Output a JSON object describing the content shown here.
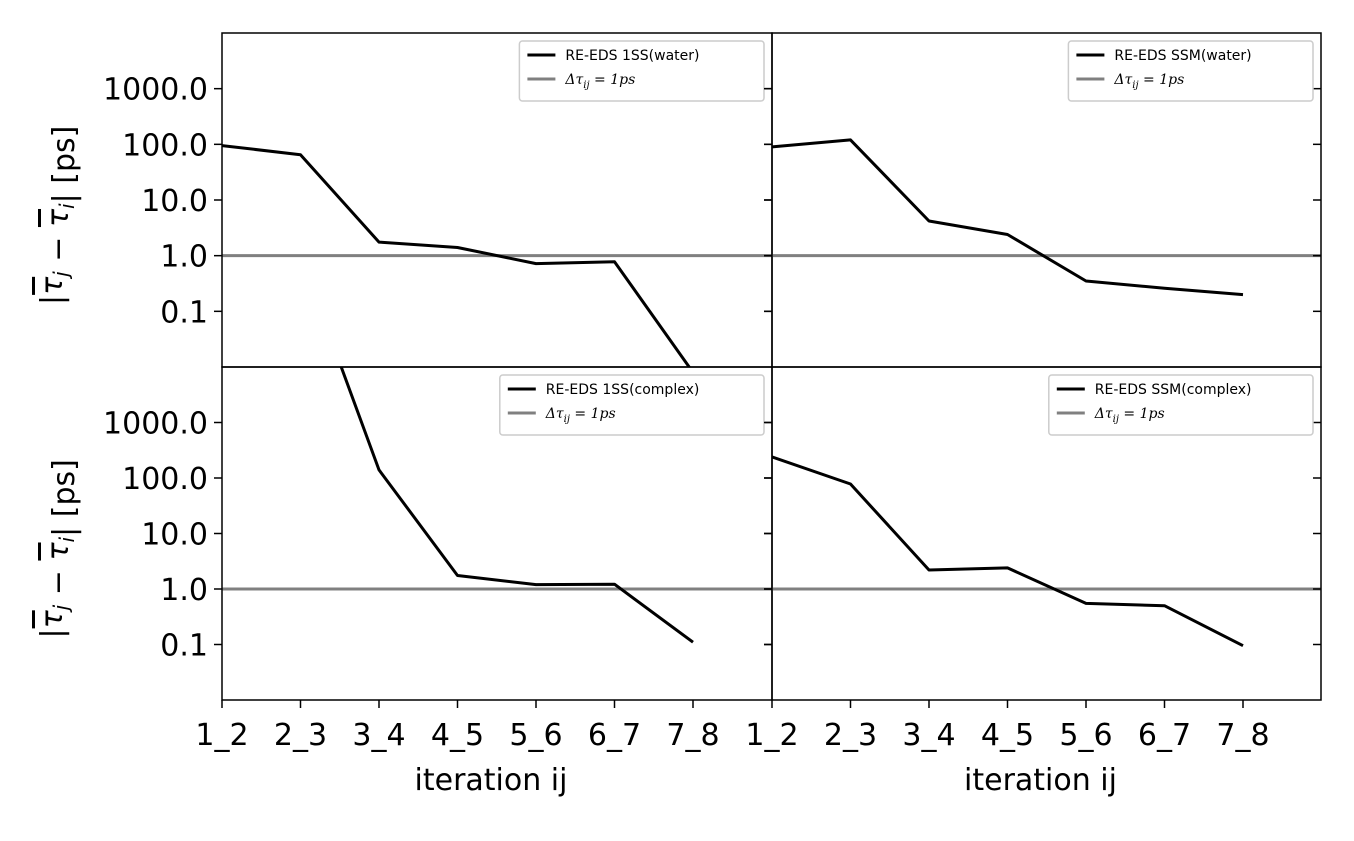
{
  "chart_data": [
    {
      "type": "line",
      "panel": "top-left",
      "x": [
        "1_2",
        "2_3",
        "3_4",
        "4_5",
        "5_6",
        "6_7",
        "7_8"
      ],
      "yscale": "log",
      "ylim": [
        0.01,
        10000
      ],
      "yticks": [
        "0.1",
        "1.0",
        "10.0",
        "100.0",
        "1000.0"
      ],
      "ylabel": "|τ̄_j − τ̄_i| [ps]",
      "xlabel": "",
      "series": [
        {
          "name": "RE-EDS 1SS(water)",
          "color": "#000000",
          "values": [
            95,
            65,
            1.75,
            1.4,
            0.72,
            0.78,
            0.008
          ]
        }
      ],
      "reference": {
        "name": "Δτ_ij = 1ps",
        "value": 1.0,
        "color": "#808080"
      },
      "legend": "upper right"
    },
    {
      "type": "line",
      "panel": "top-right",
      "x": [
        "1_2",
        "2_3",
        "3_4",
        "4_5",
        "5_6",
        "6_7",
        "7_8"
      ],
      "yscale": "log",
      "ylim": [
        0.01,
        10000
      ],
      "series": [
        {
          "name": "RE-EDS SSM(water)",
          "color": "#000000",
          "values": [
            90,
            120,
            4.2,
            2.4,
            0.35,
            0.26,
            0.2
          ]
        }
      ],
      "reference": {
        "name": "Δτ_ij = 1ps",
        "value": 1.0,
        "color": "#808080"
      },
      "legend": "upper right"
    },
    {
      "type": "line",
      "panel": "bottom-left",
      "x": [
        "1_2",
        "2_3",
        "3_4",
        "4_5",
        "5_6",
        "6_7",
        "7_8"
      ],
      "yscale": "log",
      "ylim": [
        0.01,
        10000
      ],
      "yticks": [
        "0.1",
        "1.0",
        "10.0",
        "100.0",
        "1000.0"
      ],
      "ylabel": "|τ̄_j − τ̄_i| [ps]",
      "xlabel": "iteration ij",
      "series": [
        {
          "name": "RE-EDS 1SS(complex)",
          "color": "#000000",
          "values": [
            null,
            1000000,
            140,
            1.75,
            1.2,
            1.22,
            0.11
          ]
        }
      ],
      "reference": {
        "name": "Δτ_ij = 1ps",
        "value": 1.0,
        "color": "#808080"
      },
      "legend": "upper right"
    },
    {
      "type": "line",
      "panel": "bottom-right",
      "x": [
        "1_2",
        "2_3",
        "3_4",
        "4_5",
        "5_6",
        "6_7",
        "7_8"
      ],
      "yscale": "log",
      "ylim": [
        0.01,
        10000
      ],
      "xlabel": "iteration ij",
      "series": [
        {
          "name": "RE-EDS SSM(complex)",
          "color": "#000000",
          "values": [
            240,
            78,
            2.2,
            2.4,
            0.55,
            0.5,
            0.095
          ]
        }
      ],
      "reference": {
        "name": "Δτ_ij = 1ps",
        "value": 1.0,
        "color": "#808080"
      },
      "legend": "upper right"
    }
  ],
  "legend_ref_text": {
    "lhs": "Δτ",
    "sub": "ij",
    "rhs": " = 1ps"
  },
  "ylabel_text": "[ps]"
}
